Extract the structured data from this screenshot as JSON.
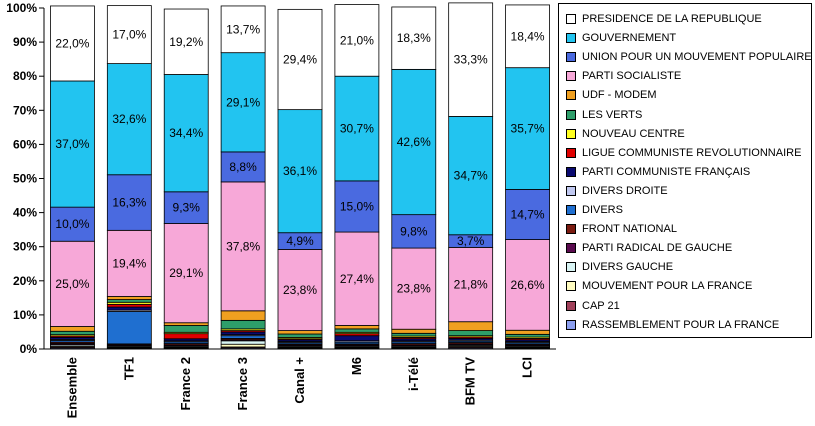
{
  "chart_data": {
    "type": "bar",
    "stacked": true,
    "categories": [
      "Ensemble",
      "TF1",
      "France 2",
      "France 3",
      "Canal +",
      "M6",
      "i-Télé",
      "BFM TV",
      "LCI"
    ],
    "y_ticks": [
      "0%",
      "10%",
      "20%",
      "30%",
      "40%",
      "50%",
      "60%",
      "70%",
      "80%",
      "90%",
      "100%"
    ],
    "ylim": [
      0,
      100
    ],
    "grid": false,
    "legend_position": "right",
    "series": [
      {
        "name": "RASSEMBLEMENT POUR LA FRANCE",
        "color": "#8c9ff0",
        "values": [
          0.3,
          0.2,
          0.2,
          0.3,
          0.2,
          0.2,
          0.2,
          0.3,
          0.2
        ]
      },
      {
        "name": "CAP 21",
        "color": "#a0405a",
        "values": [
          0.3,
          0.2,
          0.2,
          0.3,
          0.2,
          0.2,
          0.2,
          0.3,
          0.2
        ]
      },
      {
        "name": "MOUVEMENT POUR LA FRANCE",
        "color": "#fffcc0",
        "values": [
          0.3,
          0.2,
          0.2,
          0.8,
          0.2,
          0.2,
          0.2,
          0.3,
          0.2
        ]
      },
      {
        "name": "DIVERS GAUCHE",
        "color": "#d8f4f4",
        "values": [
          0.4,
          0.3,
          0.3,
          1.0,
          0.3,
          0.3,
          0.3,
          0.3,
          0.3
        ]
      },
      {
        "name": "PARTI RADICAL DE GAUCHE",
        "color": "#5a0a4e",
        "values": [
          0.3,
          0.3,
          0.3,
          0.3,
          0.3,
          0.3,
          0.3,
          0.3,
          0.3
        ]
      },
      {
        "name": "FRONT NATIONAL",
        "color": "#7a1a10",
        "values": [
          0.4,
          0.3,
          0.4,
          0.4,
          0.3,
          0.3,
          0.4,
          0.4,
          0.3
        ]
      },
      {
        "name": "DIVERS",
        "color": "#1f6fd0",
        "values": [
          0.5,
          9.5,
          0.5,
          0.8,
          0.4,
          0.5,
          0.5,
          0.4,
          0.4
        ]
      },
      {
        "name": "DIVERS DROITE",
        "color": "#c0c8f0",
        "values": [
          0.3,
          0.4,
          0.3,
          0.3,
          0.3,
          0.4,
          0.3,
          0.3,
          0.3
        ]
      },
      {
        "name": "PARTI COMMUNISTE FRANÇAIS",
        "color": "#0a0a70",
        "values": [
          0.6,
          0.9,
          0.6,
          0.8,
          0.5,
          1.5,
          0.6,
          0.5,
          0.5
        ]
      },
      {
        "name": "LIGUE COMMUNISTE REVOLUTIONNAIRE",
        "color": "#e00000",
        "values": [
          0.4,
          0.8,
          1.5,
          0.4,
          0.3,
          0.6,
          0.4,
          0.4,
          0.4
        ]
      },
      {
        "name": "NOUVEAU CENTRE",
        "color": "#ffff20",
        "values": [
          0.4,
          0.6,
          0.4,
          0.5,
          0.4,
          0.4,
          0.4,
          0.4,
          0.4
        ]
      },
      {
        "name": "LES VERTS",
        "color": "#2e9e6a",
        "values": [
          1.0,
          0.8,
          2.0,
          2.5,
          1.0,
          1.0,
          0.8,
          1.5,
          0.8
        ]
      },
      {
        "name": "UDF - MODEM",
        "color": "#f0a020",
        "values": [
          1.4,
          0.9,
          0.8,
          2.8,
          1.0,
          1.0,
          1.2,
          2.6,
          1.2
        ]
      },
      {
        "name": "PARTI SOCIALISTE",
        "color": "#f7a8d8",
        "values": [
          25.0,
          19.4,
          29.1,
          37.8,
          23.8,
          27.4,
          23.8,
          21.8,
          26.6
        ]
      },
      {
        "name": "UNION POUR UN MOUVEMENT POPULAIRE",
        "color": "#4a6ae0",
        "values": [
          10.0,
          16.3,
          9.3,
          8.8,
          4.9,
          15.0,
          9.8,
          3.7,
          14.7
        ]
      },
      {
        "name": "GOUVERNEMENT",
        "color": "#22c4f0",
        "values": [
          37.0,
          32.6,
          34.4,
          29.1,
          36.1,
          30.7,
          42.6,
          34.7,
          35.7
        ]
      },
      {
        "name": "PRESIDENCE DE LA REPUBLIQUE",
        "color": "#ffffff",
        "values": [
          22.0,
          17.0,
          19.2,
          13.7,
          29.4,
          21.0,
          18.3,
          33.3,
          18.4
        ]
      }
    ],
    "data_labels": {
      "PARTI SOCIALISTE": [
        "25,0%",
        "19,4%",
        "29,1%",
        "37,8%",
        "23,8%",
        "27,4%",
        "23,8%",
        "21,8%",
        "26,6%"
      ],
      "UNION POUR UN MOUVEMENT POPULAIRE": [
        "10,0%",
        "16,3%",
        "9,3%",
        "8,8%",
        "4,9%",
        "15,0%",
        "9,8%",
        "3,7%",
        "14,7%"
      ],
      "GOUVERNEMENT": [
        "37,0%",
        "32,6%",
        "34,4%",
        "29,1%",
        "36,1%",
        "30,7%",
        "42,6%",
        "34,7%",
        "35,7%"
      ],
      "PRESIDENCE DE LA REPUBLIQUE": [
        "22,0%",
        "17,0%",
        "19,2%",
        "13,7%",
        "29,4%",
        "21,0%",
        "18,3%",
        "33,3%",
        "18,4%"
      ]
    }
  },
  "legend": {
    "items": [
      {
        "label": "PRESIDENCE DE LA REPUBLIQUE",
        "color": "#ffffff"
      },
      {
        "label": "GOUVERNEMENT",
        "color": "#22c4f0"
      },
      {
        "label": "UNION POUR UN MOUVEMENT POPULAIRE",
        "color": "#4a6ae0"
      },
      {
        "label": "PARTI SOCIALISTE",
        "color": "#f7a8d8"
      },
      {
        "label": "UDF - MODEM",
        "color": "#f0a020"
      },
      {
        "label": "LES VERTS",
        "color": "#2e9e6a"
      },
      {
        "label": "NOUVEAU CENTRE",
        "color": "#ffff20"
      },
      {
        "label": "LIGUE COMMUNISTE REVOLUTIONNAIRE",
        "color": "#e00000"
      },
      {
        "label": "PARTI COMMUNISTE FRANÇAIS",
        "color": "#0a0a70"
      },
      {
        "label": "DIVERS DROITE",
        "color": "#c0c8f0"
      },
      {
        "label": "DIVERS",
        "color": "#1f6fd0"
      },
      {
        "label": "FRONT NATIONAL",
        "color": "#7a1a10"
      },
      {
        "label": "PARTI RADICAL DE GAUCHE",
        "color": "#5a0a4e"
      },
      {
        "label": "DIVERS GAUCHE",
        "color": "#d8f4f4"
      },
      {
        "label": "MOUVEMENT POUR LA FRANCE",
        "color": "#fffcc0"
      },
      {
        "label": "CAP 21",
        "color": "#a0405a"
      },
      {
        "label": "RASSEMBLEMENT POUR LA FRANCE",
        "color": "#8c9ff0"
      }
    ]
  }
}
